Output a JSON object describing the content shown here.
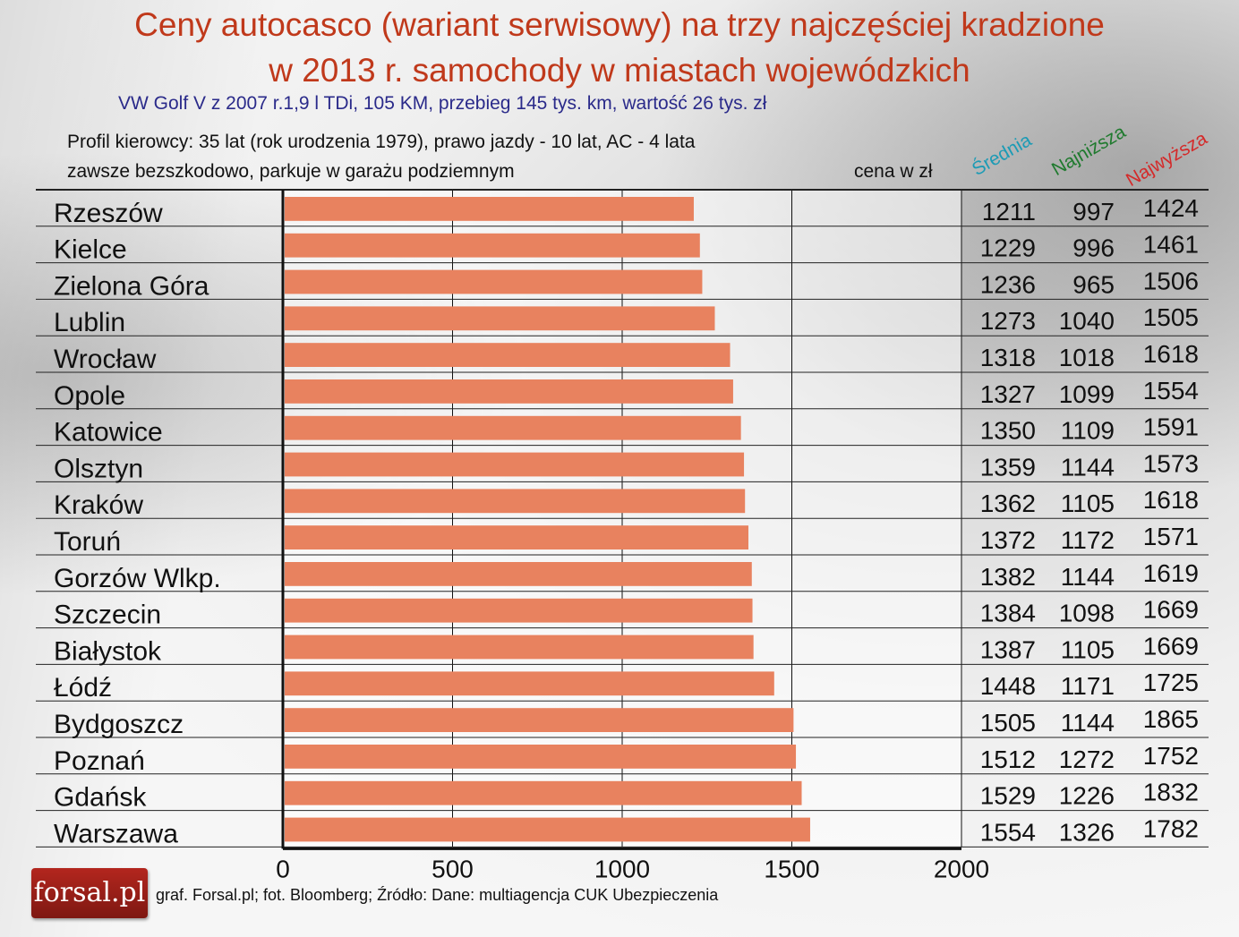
{
  "title_line1": "Ceny autocasco (wariant serwisowy) na trzy najczęściej kradzione",
  "title_line2": "w 2013 r. samochody w miastach wojewódzkich",
  "subtitle": "VW Golf V z 2007 r.1,9 l TDi, 105 KM, przebieg 145 tys. km, wartość 26 tys. zł",
  "profile_line1": "Profil kierowcy: 35 lat (rok urodzenia 1979), prawo jazdy - 10 lat, AC - 4 lata",
  "profile_line2": "zawsze bezszkodowo, parkuje w garażu podziemnym",
  "unit_label": "cena w zł",
  "col_headers": {
    "avg": "Średnia",
    "min": "Najniższa",
    "max": "Najwyższa"
  },
  "logo_text": "forsal.pl",
  "footer": "graf. Forsal.pl;   fot. Bloomberg; Źródło: Dane: multiagencja CUK Ubezpieczenia",
  "colors": {
    "title": "#c0391b",
    "subtitle": "#2a2a8a",
    "bar": "#e8825f",
    "avg_header": "#1c9bb5",
    "min_header": "#1f7a2e",
    "max_header": "#d42a2a",
    "logo": "#a42218"
  },
  "chart_data": {
    "type": "bar",
    "orientation": "horizontal",
    "categories": [
      "Rzeszów",
      "Kielce",
      "Zielona Góra",
      "Lublin",
      "Wrocław",
      "Opole",
      "Katowice",
      "Olsztyn",
      "Kraków",
      "Toruń",
      "Gorzów Wlkp.",
      "Szczecin",
      "Białystok",
      "Łódź",
      "Bydgoszcz",
      "Poznań",
      "Gdańsk",
      "Warszawa"
    ],
    "series": [
      {
        "name": "Średnia",
        "values": [
          1211,
          1229,
          1236,
          1273,
          1318,
          1327,
          1350,
          1359,
          1362,
          1372,
          1382,
          1384,
          1387,
          1448,
          1505,
          1512,
          1529,
          1554
        ]
      }
    ],
    "table_columns": {
      "Średnia": [
        1211,
        1229,
        1236,
        1273,
        1318,
        1327,
        1350,
        1359,
        1362,
        1372,
        1382,
        1384,
        1387,
        1448,
        1505,
        1512,
        1529,
        1554
      ],
      "Najniższa": [
        997,
        996,
        965,
        1040,
        1018,
        1099,
        1109,
        1144,
        1105,
        1172,
        1144,
        1098,
        1105,
        1171,
        1144,
        1272,
        1226,
        1326
      ],
      "Najwyższa": [
        1424,
        1461,
        1506,
        1505,
        1618,
        1554,
        1591,
        1573,
        1618,
        1571,
        1619,
        1669,
        1669,
        1725,
        1865,
        1752,
        1832,
        1782
      ]
    },
    "xlim": [
      0,
      2000
    ],
    "xticks": [
      "0",
      "500",
      "1000",
      "1500",
      "2000"
    ],
    "grid": true
  }
}
